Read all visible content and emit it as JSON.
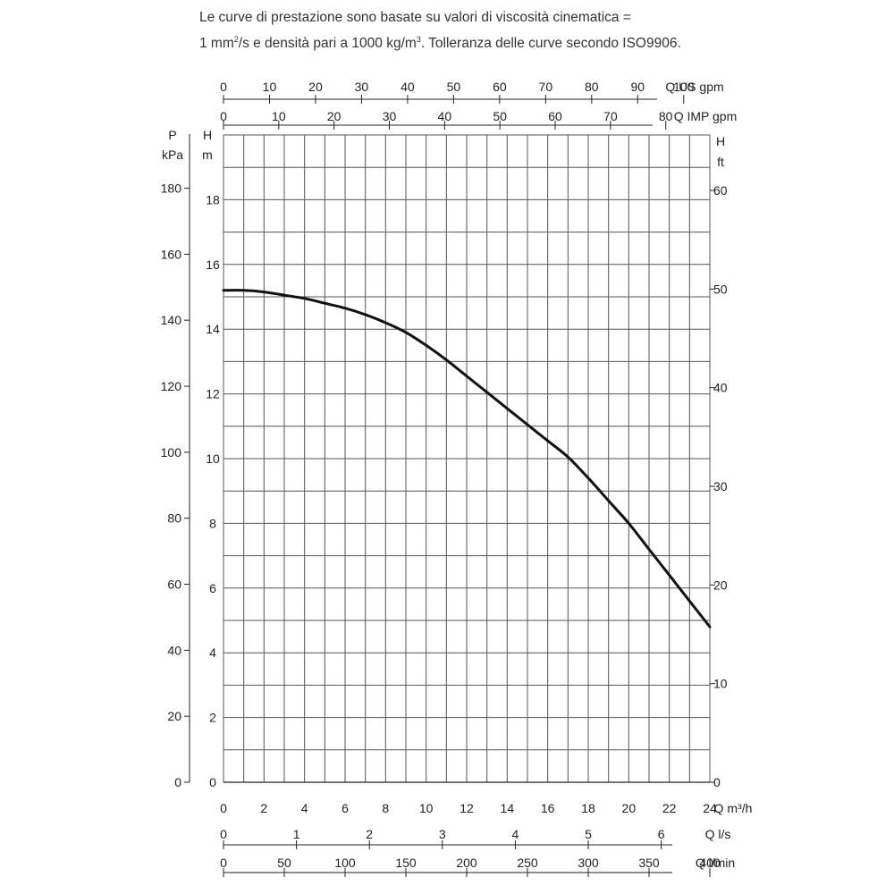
{
  "note": {
    "p1": "Le curve di prestazione sono basate su valori di viscosità cinematica =",
    "p2": "1 mm",
    "p2sup": "2",
    "p3": "/s e densità pari a 1000 kg/m",
    "p3sup": "3",
    "p4": ". Tolleranza delle curve secondo ISO9906."
  },
  "chart_data": {
    "type": "line",
    "series": [
      {
        "x": [
          0,
          1,
          2,
          3,
          4,
          5,
          6,
          7,
          8,
          9,
          10,
          11,
          12,
          13,
          14,
          15,
          16,
          17,
          18,
          19,
          20,
          21,
          22,
          23,
          24
        ],
        "y": [
          15.2,
          15.2,
          15.15,
          15.05,
          14.95,
          14.8,
          14.65,
          14.45,
          14.2,
          13.9,
          13.5,
          13.05,
          12.55,
          12.05,
          11.55,
          11.05,
          10.55,
          10.05,
          9.4,
          8.7,
          8.0,
          7.2,
          6.4,
          5.6,
          4.8
        ]
      }
    ],
    "xlabel": "Q m³/h",
    "ylabel": "H m",
    "xlim": [
      0,
      24
    ],
    "ylim": [
      0,
      20
    ],
    "grid": true,
    "axes": {
      "x_m3h": {
        "label": "Q m³/h",
        "ticks": [
          "0",
          "2",
          "4",
          "6",
          "8",
          "10",
          "12",
          "14",
          "16",
          "18",
          "20",
          "22",
          "24"
        ],
        "values": [
          0,
          2,
          4,
          6,
          8,
          10,
          12,
          14,
          16,
          18,
          20,
          22,
          24
        ]
      },
      "x_ls": {
        "label": "Q l/s",
        "ticks": [
          "0",
          "1",
          "2",
          "3",
          "4",
          "5",
          "6"
        ],
        "values": [
          0,
          1,
          2,
          3,
          4,
          5,
          6
        ]
      },
      "x_lmin": {
        "label": "Q l/min",
        "ticks": [
          "0",
          "50",
          "100",
          "150",
          "200",
          "250",
          "300",
          "350",
          "400"
        ],
        "values": [
          0,
          50,
          100,
          150,
          200,
          250,
          300,
          350,
          400
        ]
      },
      "x_usgpm": {
        "label": "Q US gpm",
        "ticks": [
          "0",
          "10",
          "20",
          "30",
          "40",
          "50",
          "60",
          "70",
          "80",
          "90",
          "100"
        ],
        "values": [
          0,
          10,
          20,
          30,
          40,
          50,
          60,
          70,
          80,
          90,
          100
        ]
      },
      "x_impgpm": {
        "label": "Q IMP gpm",
        "ticks": [
          "0",
          "10",
          "20",
          "30",
          "40",
          "50",
          "60",
          "70",
          "80"
        ],
        "values": [
          0,
          10,
          20,
          30,
          40,
          50,
          60,
          70,
          80
        ]
      },
      "y_m": {
        "label_top": "H",
        "label_bottom": "m",
        "ticks": [
          "0",
          "2",
          "4",
          "6",
          "8",
          "10",
          "12",
          "14",
          "16",
          "18"
        ],
        "values": [
          0,
          2,
          4,
          6,
          8,
          10,
          12,
          14,
          16,
          18
        ]
      },
      "y_kpa": {
        "label_top": "P",
        "label_bottom": "kPa",
        "ticks": [
          "0",
          "20",
          "40",
          "60",
          "80",
          "100",
          "120",
          "140",
          "160",
          "180"
        ],
        "values": [
          0,
          20,
          40,
          60,
          80,
          100,
          120,
          140,
          160,
          180
        ]
      },
      "y_ft": {
        "label_top": "H",
        "label_bottom": "ft",
        "ticks": [
          "0",
          "10",
          "20",
          "30",
          "40",
          "50",
          "60"
        ],
        "values": [
          0,
          10,
          20,
          30,
          40,
          50,
          60
        ]
      }
    }
  }
}
